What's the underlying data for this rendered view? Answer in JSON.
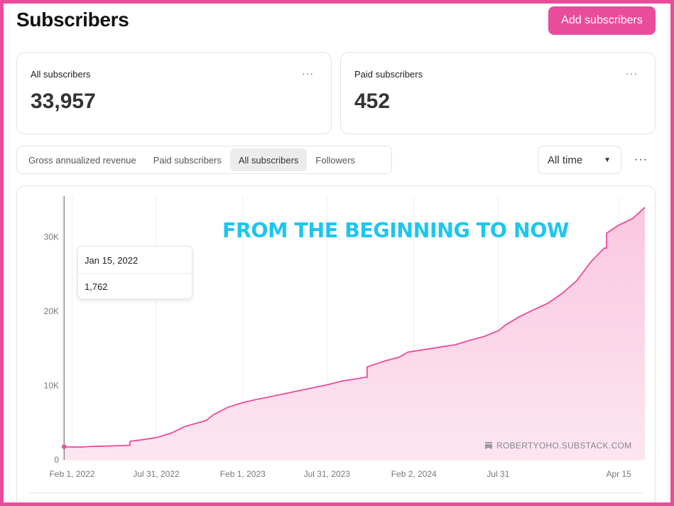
{
  "header": {
    "title": "Subscribers",
    "add_button_label": "Add subscribers"
  },
  "stats": [
    {
      "label": "All subscribers",
      "value": "33,957",
      "menu": "···"
    },
    {
      "label": "Paid subscribers",
      "value": "452",
      "menu": "···"
    }
  ],
  "tabs": [
    {
      "label": "Gross annualized revenue",
      "active": false
    },
    {
      "label": "Paid subscribers",
      "active": false
    },
    {
      "label": "All subscribers",
      "active": true
    },
    {
      "label": "Followers",
      "active": false
    }
  ],
  "range_select": {
    "value": "All time",
    "caret": "▼"
  },
  "more_menu": "···",
  "overlay_text": "FROM THE BEGINNING TO NOW",
  "tooltip": {
    "date": "Jan 15, 2022",
    "value": "1,762"
  },
  "watermark": "ROBERTYOHO.SUBSTACK.COM",
  "colors": {
    "accent": "#ea4c9c",
    "overlay": "#1cc6f0",
    "area_fill": "#fbd9ea"
  },
  "chart_data": {
    "type": "area",
    "title": "",
    "xlabel": "",
    "ylabel": "",
    "y_ticks": [
      0,
      10000,
      20000,
      30000
    ],
    "y_tick_labels": [
      "0",
      "10K",
      "20K",
      "30K"
    ],
    "ylim": [
      0,
      35500
    ],
    "x_ticks": [
      "2022-02-01",
      "2022-07-31",
      "2023-02-01",
      "2023-07-31",
      "2024-02-02",
      "2024-07-31",
      "2025-04-15"
    ],
    "x_tick_labels": [
      "Feb 1, 2022",
      "Jul 31, 2022",
      "Feb 1, 2023",
      "Jul 31, 2023",
      "Feb 2, 2024",
      "Jul 31",
      "Apr 15"
    ],
    "xlim": [
      "2022-01-10",
      "2025-06-10"
    ],
    "grid": "vertical",
    "hover_date": "2022-01-15",
    "series": [
      {
        "name": "",
        "x": [
          "2022-01-15",
          "2022-02-15",
          "2022-03-15",
          "2022-04-15",
          "2022-05-15",
          "2022-06-01",
          "2022-06-05",
          "2022-07-01",
          "2022-08-01",
          "2022-09-01",
          "2022-10-01",
          "2022-11-15",
          "2022-12-01",
          "2023-01-01",
          "2023-02-01",
          "2023-03-01",
          "2023-04-01",
          "2023-05-01",
          "2023-06-01",
          "2023-07-01",
          "2023-08-01",
          "2023-09-01",
          "2023-10-01",
          "2023-10-20",
          "2023-10-25",
          "2023-12-01",
          "2024-01-01",
          "2024-01-20",
          "2024-03-01",
          "2024-05-01",
          "2024-06-01",
          "2024-07-01",
          "2024-08-01",
          "2024-08-15",
          "2024-09-15",
          "2024-10-15",
          "2024-11-15",
          "2024-12-15",
          "2025-01-15",
          "2025-02-15",
          "2025-03-15",
          "2025-03-20",
          "2025-04-15",
          "2025-05-15",
          "2025-06-10"
        ],
        "values": [
          1762,
          1700,
          1800,
          1850,
          1900,
          1950,
          2500,
          2700,
          3000,
          3600,
          4500,
          5300,
          6100,
          7100,
          7700,
          8100,
          8500,
          8900,
          9300,
          9700,
          10100,
          10600,
          10900,
          11100,
          12500,
          13300,
          13800,
          14500,
          14900,
          15500,
          16100,
          16600,
          17400,
          18100,
          19300,
          20200,
          21100,
          22400,
          24100,
          26700,
          28500,
          30500,
          31600,
          32500,
          34000
        ]
      }
    ]
  }
}
